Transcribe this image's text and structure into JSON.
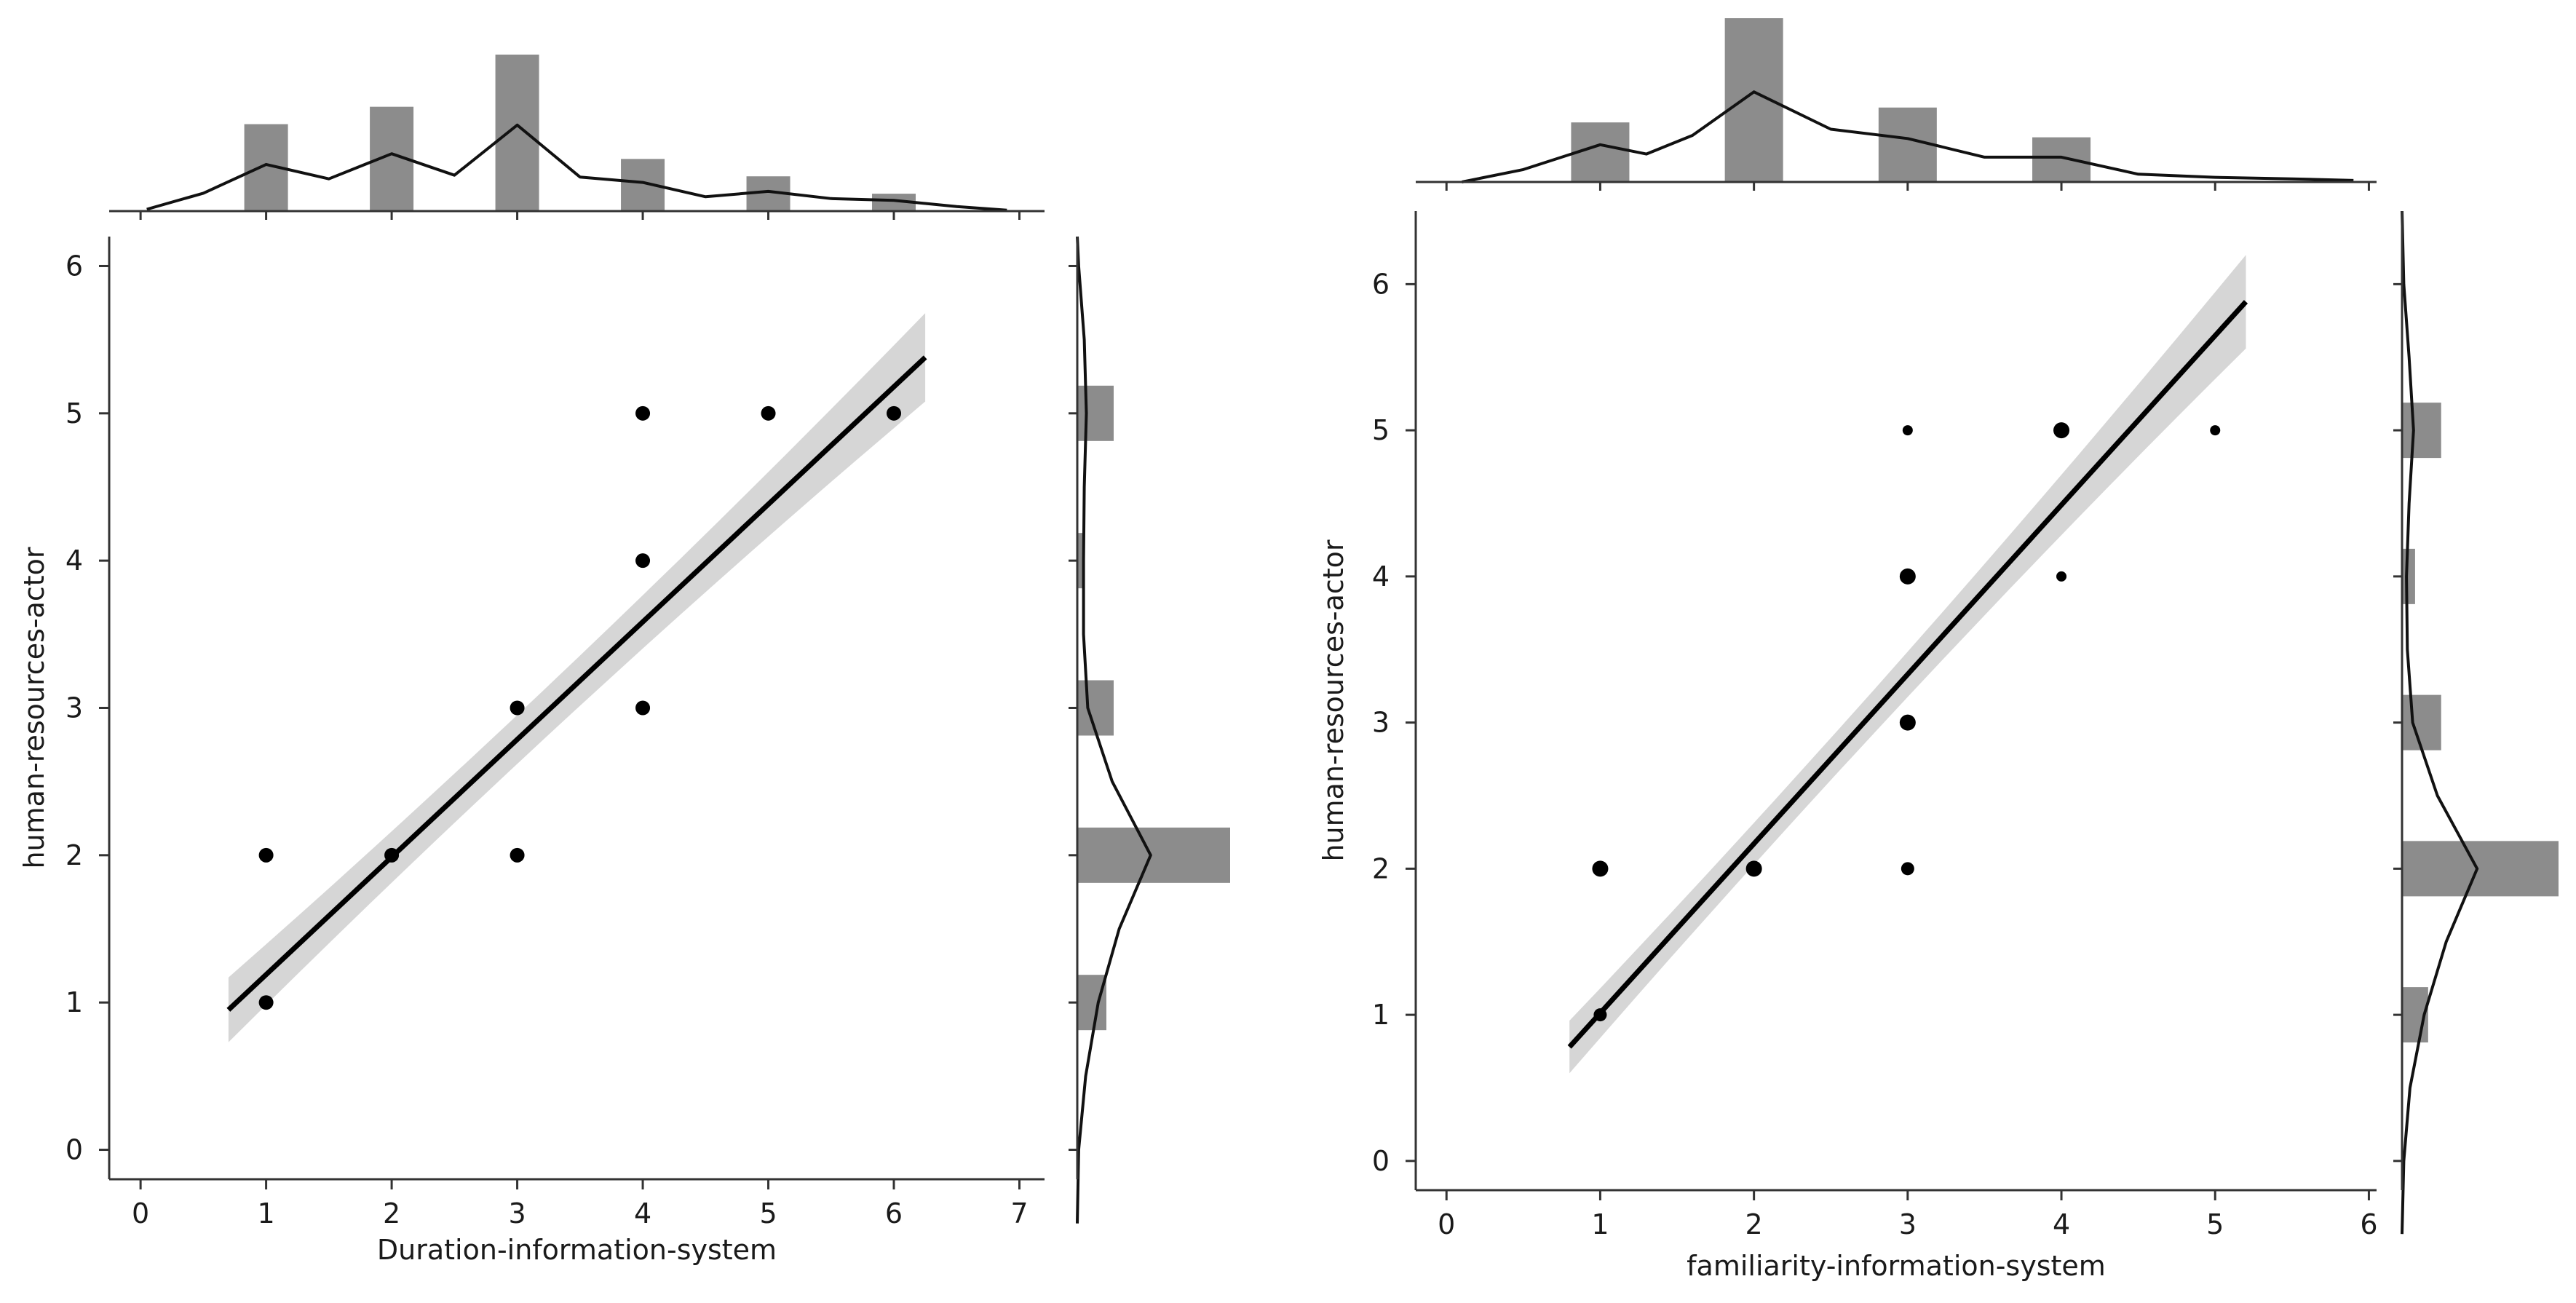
{
  "chart_data": [
    {
      "type": "scatter",
      "xlabel": "Duration-information-system",
      "ylabel": "human-resources-actor",
      "xlim": [
        -0.25,
        7.2
      ],
      "ylim": [
        -0.2,
        6.2
      ],
      "xticks": [
        0,
        1,
        2,
        3,
        4,
        5,
        6,
        7
      ],
      "yticks": [
        0,
        1,
        2,
        3,
        4,
        5,
        6
      ],
      "points": [
        {
          "x": 1,
          "y": 2
        },
        {
          "x": 1,
          "y": 1
        },
        {
          "x": 2,
          "y": 2
        },
        {
          "x": 3,
          "y": 3
        },
        {
          "x": 3,
          "y": 2
        },
        {
          "x": 4,
          "y": 5
        },
        {
          "x": 4,
          "y": 4
        },
        {
          "x": 4,
          "y": 3
        },
        {
          "x": 5,
          "y": 5
        },
        {
          "x": 6,
          "y": 5
        }
      ],
      "regression": {
        "x": [
          0.7,
          6.25
        ],
        "y": [
          0.95,
          5.38
        ],
        "ci_half_width": [
          0.22,
          0.08,
          0.3
        ]
      },
      "x_histogram": {
        "bins": [
          {
            "x": 1,
            "count": 5
          },
          {
            "x": 2,
            "count": 6
          },
          {
            "x": 3,
            "count": 9
          },
          {
            "x": 4,
            "count": 3
          },
          {
            "x": 5,
            "count": 2
          },
          {
            "x": 6,
            "count": 1
          }
        ],
        "kde": [
          [
            0.05,
            0.1
          ],
          [
            0.5,
            1.0
          ],
          [
            1.0,
            2.6
          ],
          [
            1.5,
            1.8
          ],
          [
            2.0,
            3.2
          ],
          [
            2.5,
            2.0
          ],
          [
            3.0,
            4.8
          ],
          [
            3.5,
            1.9
          ],
          [
            4.0,
            1.6
          ],
          [
            4.5,
            0.8
          ],
          [
            5.0,
            1.1
          ],
          [
            5.5,
            0.7
          ],
          [
            6.0,
            0.6
          ],
          [
            6.5,
            0.25
          ],
          [
            6.9,
            0.05
          ]
        ]
      },
      "y_histogram": {
        "bins": [
          {
            "y": 1,
            "count": 4
          },
          {
            "y": 2,
            "count": 21
          },
          {
            "y": 3,
            "count": 5
          },
          {
            "y": 4,
            "count": 1
          },
          {
            "y": 5,
            "count": 5
          }
        ],
        "kde": [
          [
            -0.5,
            0.0
          ],
          [
            0.0,
            0.2
          ],
          [
            0.5,
            1.2
          ],
          [
            1.0,
            3.0
          ],
          [
            1.5,
            6.0
          ],
          [
            2.0,
            10.5
          ],
          [
            2.5,
            5.0
          ],
          [
            3.0,
            1.5
          ],
          [
            3.5,
            0.9
          ],
          [
            4.0,
            0.9
          ],
          [
            4.5,
            1.0
          ],
          [
            5.0,
            1.3
          ],
          [
            5.5,
            1.0
          ],
          [
            6.0,
            0.2
          ],
          [
            6.2,
            0.0
          ]
        ]
      }
    },
    {
      "type": "scatter",
      "xlabel": "familiarity-information-system",
      "ylabel": "human-resources-actor",
      "xlim": [
        -0.2,
        6.05
      ],
      "ylim": [
        -0.2,
        6.5
      ],
      "xticks": [
        0,
        1,
        2,
        3,
        4,
        5,
        6
      ],
      "yticks": [
        0,
        1,
        2,
        3,
        4,
        5,
        6
      ],
      "points": [
        {
          "x": 1,
          "y": 2,
          "size": "large"
        },
        {
          "x": 1,
          "y": 1,
          "size": "medium"
        },
        {
          "x": 2,
          "y": 2,
          "size": "large"
        },
        {
          "x": 3,
          "y": 5,
          "size": "small"
        },
        {
          "x": 3,
          "y": 4,
          "size": "large"
        },
        {
          "x": 3,
          "y": 3,
          "size": "large"
        },
        {
          "x": 3,
          "y": 2,
          "size": "medium"
        },
        {
          "x": 4,
          "y": 5,
          "size": "large"
        },
        {
          "x": 4,
          "y": 4,
          "size": "small"
        },
        {
          "x": 5,
          "y": 5,
          "size": "small"
        }
      ],
      "regression": {
        "x": [
          0.8,
          5.2
        ],
        "y": [
          0.78,
          5.88
        ],
        "ci_half_width": [
          0.18,
          0.06,
          0.32
        ]
      },
      "x_histogram": {
        "bins": [
          {
            "x": 1,
            "count": 4
          },
          {
            "x": 2,
            "count": 11
          },
          {
            "x": 3,
            "count": 5
          },
          {
            "x": 4,
            "count": 3
          }
        ],
        "kde": [
          [
            0.1,
            0.0
          ],
          [
            0.5,
            0.8
          ],
          [
            1.0,
            2.4
          ],
          [
            1.3,
            1.8
          ],
          [
            1.6,
            3.0
          ],
          [
            2.0,
            5.8
          ],
          [
            2.5,
            3.4
          ],
          [
            3.0,
            2.8
          ],
          [
            3.5,
            1.6
          ],
          [
            4.0,
            1.6
          ],
          [
            4.5,
            0.5
          ],
          [
            5.0,
            0.3
          ],
          [
            5.5,
            0.2
          ],
          [
            5.9,
            0.1
          ]
        ]
      },
      "y_histogram": {
        "bins": [
          {
            "y": 1,
            "count": 2
          },
          {
            "y": 2,
            "count": 12
          },
          {
            "y": 3,
            "count": 3
          },
          {
            "y": 4,
            "count": 1
          },
          {
            "y": 5,
            "count": 3
          }
        ],
        "kde": [
          [
            -0.5,
            0.0
          ],
          [
            0.0,
            0.2
          ],
          [
            0.5,
            0.9
          ],
          [
            1.0,
            2.5
          ],
          [
            1.5,
            5.0
          ],
          [
            2.0,
            8.5
          ],
          [
            2.5,
            4.0
          ],
          [
            3.0,
            1.2
          ],
          [
            3.5,
            0.6
          ],
          [
            4.0,
            0.5
          ],
          [
            4.5,
            0.8
          ],
          [
            5.0,
            1.3
          ],
          [
            5.5,
            0.8
          ],
          [
            6.0,
            0.2
          ],
          [
            6.5,
            0.0
          ]
        ]
      }
    }
  ]
}
